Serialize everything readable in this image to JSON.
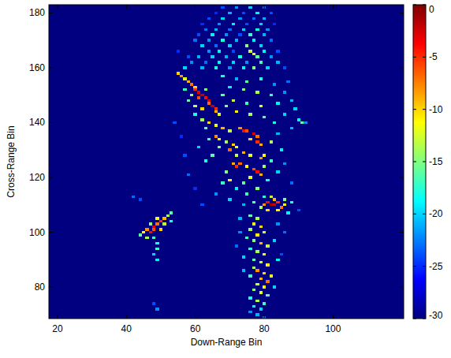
{
  "chart_data": {
    "type": "heatmap",
    "x_label": "Down-Range Bin",
    "y_label": "Cross-Range Bin",
    "xlim": [
      17.5,
      120.5
    ],
    "xticks": [
      20,
      40,
      60,
      80,
      100
    ],
    "ylim": [
      68.5,
      183
    ],
    "yticks": [
      80,
      100,
      120,
      140,
      160,
      180
    ],
    "zlim": [
      -30,
      0
    ],
    "zticks": [
      0,
      -5,
      -10,
      -15,
      -20,
      -25,
      -30
    ],
    "cells": [
      [
        68,
        182,
        -24
      ],
      [
        72,
        182,
        -22
      ],
      [
        76,
        182,
        -20
      ],
      [
        80,
        182,
        -23
      ],
      [
        66,
        180,
        -25
      ],
      [
        70,
        180,
        -21
      ],
      [
        74,
        180,
        -24
      ],
      [
        78,
        180,
        -19
      ],
      [
        82,
        180,
        -24
      ],
      [
        64,
        178,
        -24
      ],
      [
        68,
        178,
        -20
      ],
      [
        73,
        178,
        -22
      ],
      [
        77,
        178,
        -23
      ],
      [
        80,
        178,
        -21
      ],
      [
        62,
        176,
        -25
      ],
      [
        67,
        176,
        -22
      ],
      [
        71,
        176,
        -19
      ],
      [
        75,
        176,
        -24
      ],
      [
        79,
        176,
        -20
      ],
      [
        83,
        176,
        -25
      ],
      [
        63,
        174,
        -23
      ],
      [
        66,
        174,
        -21
      ],
      [
        70,
        174,
        -23
      ],
      [
        74,
        174,
        -20
      ],
      [
        78,
        174,
        -18
      ],
      [
        81,
        174,
        -22
      ],
      [
        61,
        172,
        -24
      ],
      [
        65,
        172,
        -19
      ],
      [
        69,
        172,
        -22
      ],
      [
        73,
        172,
        -24
      ],
      [
        76,
        172,
        -17
      ],
      [
        80,
        172,
        -21
      ],
      [
        60,
        170,
        -23
      ],
      [
        64,
        170,
        -22
      ],
      [
        68,
        170,
        -18
      ],
      [
        72,
        170,
        -21
      ],
      [
        77,
        170,
        -19
      ],
      [
        82,
        170,
        -23
      ],
      [
        62,
        168,
        -20
      ],
      [
        66,
        168,
        -23
      ],
      [
        70,
        168,
        -20
      ],
      [
        75,
        168,
        -15
      ],
      [
        79,
        168,
        -20
      ],
      [
        64,
        166,
        -22
      ],
      [
        67,
        166,
        -19
      ],
      [
        71,
        166,
        -24
      ],
      [
        76,
        166,
        -13
      ],
      [
        77,
        165,
        -12
      ],
      [
        80,
        166,
        -19
      ],
      [
        84,
        166,
        -24
      ],
      [
        58,
        164,
        -24
      ],
      [
        61,
        164,
        -21
      ],
      [
        65,
        164,
        -20
      ],
      [
        69,
        164,
        -21
      ],
      [
        73,
        164,
        -18
      ],
      [
        78,
        164,
        -16
      ],
      [
        82,
        164,
        -22
      ],
      [
        59,
        162,
        -22
      ],
      [
        63,
        162,
        -23
      ],
      [
        67,
        162,
        -19
      ],
      [
        71,
        162,
        -20
      ],
      [
        75,
        162,
        -22
      ],
      [
        79,
        162,
        -17
      ],
      [
        84,
        162,
        -21
      ],
      [
        57,
        160,
        -20
      ],
      [
        62,
        160,
        -21
      ],
      [
        66,
        160,
        -18
      ],
      [
        70,
        160,
        -22
      ],
      [
        74,
        160,
        -19
      ],
      [
        77,
        160,
        -15
      ],
      [
        81,
        160,
        -20
      ],
      [
        86,
        160,
        -24
      ],
      [
        55,
        158,
        -10
      ],
      [
        56,
        157,
        -8
      ],
      [
        57,
        156,
        -12
      ],
      [
        58,
        155,
        -9
      ],
      [
        59,
        154,
        -7
      ],
      [
        60,
        153,
        -10
      ],
      [
        60,
        152,
        -5
      ],
      [
        61,
        151,
        -3
      ],
      [
        62,
        150,
        -2
      ],
      [
        61,
        149,
        -6
      ],
      [
        63,
        149,
        -4
      ],
      [
        64,
        148,
        -3
      ],
      [
        64,
        147,
        -7
      ],
      [
        65,
        146,
        -2
      ],
      [
        66,
        145,
        -5
      ],
      [
        66,
        144,
        -9
      ],
      [
        67,
        143,
        -12
      ],
      [
        59,
        150,
        -14
      ],
      [
        58,
        148,
        -16
      ],
      [
        60,
        146,
        -13
      ],
      [
        62,
        145,
        -10
      ],
      [
        57,
        152,
        -17
      ],
      [
        63,
        152,
        -15
      ],
      [
        68,
        157,
        -18
      ],
      [
        72,
        156,
        -21
      ],
      [
        75,
        155,
        -16
      ],
      [
        79,
        156,
        -18
      ],
      [
        83,
        154,
        -22
      ],
      [
        70,
        153,
        -19
      ],
      [
        74,
        152,
        -15
      ],
      [
        78,
        151,
        -14
      ],
      [
        82,
        150,
        -17
      ],
      [
        86,
        151,
        -22
      ],
      [
        68,
        150,
        -16
      ],
      [
        71,
        148,
        -13
      ],
      [
        75,
        147,
        -17
      ],
      [
        79,
        146,
        -12
      ],
      [
        84,
        147,
        -19
      ],
      [
        88,
        148,
        -21
      ],
      [
        69,
        146,
        -15
      ],
      [
        72,
        144,
        -11
      ],
      [
        76,
        143,
        -14
      ],
      [
        80,
        142,
        -16
      ],
      [
        86,
        143,
        -20
      ],
      [
        90,
        141,
        -19
      ],
      [
        91,
        140,
        -16
      ],
      [
        88,
        138,
        -21
      ],
      [
        62,
        141,
        -14
      ],
      [
        64,
        140,
        -10
      ],
      [
        63,
        138,
        -16
      ],
      [
        60,
        143,
        -18
      ],
      [
        66,
        139,
        -12
      ],
      [
        68,
        138,
        -9
      ],
      [
        70,
        137,
        -13
      ],
      [
        73,
        138,
        -8
      ],
      [
        74,
        137,
        -4
      ],
      [
        75,
        137,
        -6
      ],
      [
        77,
        136,
        -3
      ],
      [
        78,
        135,
        -7
      ],
      [
        76,
        134,
        -10
      ],
      [
        78,
        133,
        -5
      ],
      [
        79,
        132,
        -9
      ],
      [
        66,
        135,
        -8
      ],
      [
        67,
        134,
        -11
      ],
      [
        69,
        133,
        -14
      ],
      [
        71,
        132,
        -10
      ],
      [
        72,
        131,
        -12
      ],
      [
        67,
        131,
        -15
      ],
      [
        70,
        130,
        -7
      ],
      [
        72,
        128,
        -13
      ],
      [
        74,
        129,
        -9
      ],
      [
        76,
        128,
        -12
      ],
      [
        79,
        127,
        -8
      ],
      [
        80,
        128,
        -11
      ],
      [
        71,
        125,
        -9
      ],
      [
        72,
        124,
        -5
      ],
      [
        73,
        125,
        -7
      ],
      [
        75,
        124,
        -11
      ],
      [
        77,
        123,
        -6
      ],
      [
        78,
        122,
        -4
      ],
      [
        79,
        121,
        -9
      ],
      [
        76,
        120,
        -12
      ],
      [
        80,
        124,
        -14
      ],
      [
        82,
        126,
        -17
      ],
      [
        69,
        122,
        -15
      ],
      [
        70,
        119,
        -11
      ],
      [
        68,
        118,
        -17
      ],
      [
        74,
        118,
        -16
      ],
      [
        81,
        119,
        -18
      ],
      [
        84,
        122,
        -20
      ],
      [
        63,
        126,
        -18
      ],
      [
        65,
        128,
        -16
      ],
      [
        61,
        131,
        -20
      ],
      [
        64,
        134,
        -17
      ],
      [
        85,
        130,
        -19
      ],
      [
        84,
        136,
        -21
      ],
      [
        83,
        140,
        -18
      ],
      [
        82,
        133,
        -14
      ],
      [
        72,
        116,
        -19
      ],
      [
        75,
        114,
        -17
      ],
      [
        78,
        116,
        -15
      ],
      [
        80,
        113,
        -18
      ],
      [
        66,
        114,
        -22
      ],
      [
        70,
        112,
        -20
      ],
      [
        74,
        110,
        -21
      ],
      [
        77,
        111,
        -16
      ],
      [
        80,
        110,
        -8
      ],
      [
        81,
        111,
        -4
      ],
      [
        82,
        110,
        -1
      ],
      [
        83,
        110,
        -2
      ],
      [
        84,
        111,
        -5
      ],
      [
        85,
        109,
        -7
      ],
      [
        83,
        112,
        -9
      ],
      [
        81,
        108,
        -10
      ],
      [
        84,
        108,
        -11
      ],
      [
        86,
        110,
        -12
      ],
      [
        79,
        109,
        -14
      ],
      [
        86,
        112,
        -15
      ],
      [
        82,
        113,
        -13
      ],
      [
        88,
        111,
        -18
      ],
      [
        87,
        107,
        -19
      ],
      [
        76,
        106,
        -16
      ],
      [
        78,
        105,
        -14
      ],
      [
        77,
        103,
        -12
      ],
      [
        79,
        102,
        -10
      ],
      [
        76,
        101,
        -14
      ],
      [
        80,
        100,
        -13
      ],
      [
        78,
        99,
        -11
      ],
      [
        75,
        98,
        -17
      ],
      [
        77,
        97,
        -15
      ],
      [
        79,
        96,
        -9
      ],
      [
        81,
        95,
        -13
      ],
      [
        76,
        94,
        -18
      ],
      [
        78,
        93,
        -14
      ],
      [
        80,
        92,
        -12
      ],
      [
        74,
        91,
        -20
      ],
      [
        77,
        90,
        -16
      ],
      [
        79,
        89,
        -13
      ],
      [
        81,
        88,
        -11
      ],
      [
        77,
        87,
        -14
      ],
      [
        78,
        86,
        -8
      ],
      [
        80,
        85,
        -10
      ],
      [
        82,
        84,
        -12
      ],
      [
        76,
        84,
        -17
      ],
      [
        79,
        83,
        -9
      ],
      [
        81,
        82,
        -7
      ],
      [
        78,
        81,
        -13
      ],
      [
        80,
        80,
        -11
      ],
      [
        77,
        79,
        -15
      ],
      [
        79,
        78,
        -12
      ],
      [
        81,
        77,
        -16
      ],
      [
        76,
        76,
        -18
      ],
      [
        78,
        75,
        -14
      ],
      [
        80,
        74,
        -17
      ],
      [
        77,
        73,
        -19
      ],
      [
        79,
        72,
        -20
      ],
      [
        76,
        71,
        -22
      ],
      [
        78,
        70,
        -21
      ],
      [
        80,
        69,
        -23
      ],
      [
        73,
        100,
        -22
      ],
      [
        83,
        97,
        -20
      ],
      [
        84,
        90,
        -19
      ],
      [
        74,
        86,
        -21
      ],
      [
        83,
        80,
        -20
      ],
      [
        72,
        95,
        -23
      ],
      [
        84,
        103,
        -22
      ],
      [
        73,
        105,
        -21
      ],
      [
        44,
        99,
        -16
      ],
      [
        45,
        100,
        -11
      ],
      [
        46,
        101,
        -8
      ],
      [
        47,
        100,
        -4
      ],
      [
        48,
        101,
        -6
      ],
      [
        48,
        102,
        -3
      ],
      [
        49,
        103,
        -7
      ],
      [
        50,
        104,
        -5
      ],
      [
        51,
        105,
        -9
      ],
      [
        49,
        105,
        -12
      ],
      [
        52,
        106,
        -14
      ],
      [
        53,
        107,
        -16
      ],
      [
        46,
        98,
        -14
      ],
      [
        48,
        98,
        -17
      ],
      [
        50,
        101,
        -10
      ],
      [
        51,
        103,
        -13
      ],
      [
        47,
        103,
        -15
      ],
      [
        49,
        96,
        -18
      ],
      [
        49,
        94,
        -17
      ],
      [
        48,
        92,
        -20
      ],
      [
        49,
        90,
        -19
      ],
      [
        42,
        113,
        -23
      ],
      [
        44,
        112,
        -24
      ],
      [
        53,
        104,
        -18
      ],
      [
        48,
        74,
        -24
      ],
      [
        49,
        72,
        -22
      ],
      [
        56,
        135,
        -25
      ],
      [
        57,
        128,
        -24
      ],
      [
        58,
        121,
        -23
      ],
      [
        60,
        116,
        -25
      ],
      [
        62,
        110,
        -24
      ],
      [
        54,
        140,
        -24
      ],
      [
        55,
        166,
        -25
      ],
      [
        87,
        155,
        -23
      ],
      [
        89,
        145,
        -20
      ],
      [
        92,
        140,
        -22
      ],
      [
        86,
        125,
        -22
      ],
      [
        88,
        118,
        -23
      ],
      [
        90,
        108,
        -24
      ],
      [
        86,
        100,
        -23
      ],
      [
        85,
        92,
        -24
      ]
    ]
  }
}
